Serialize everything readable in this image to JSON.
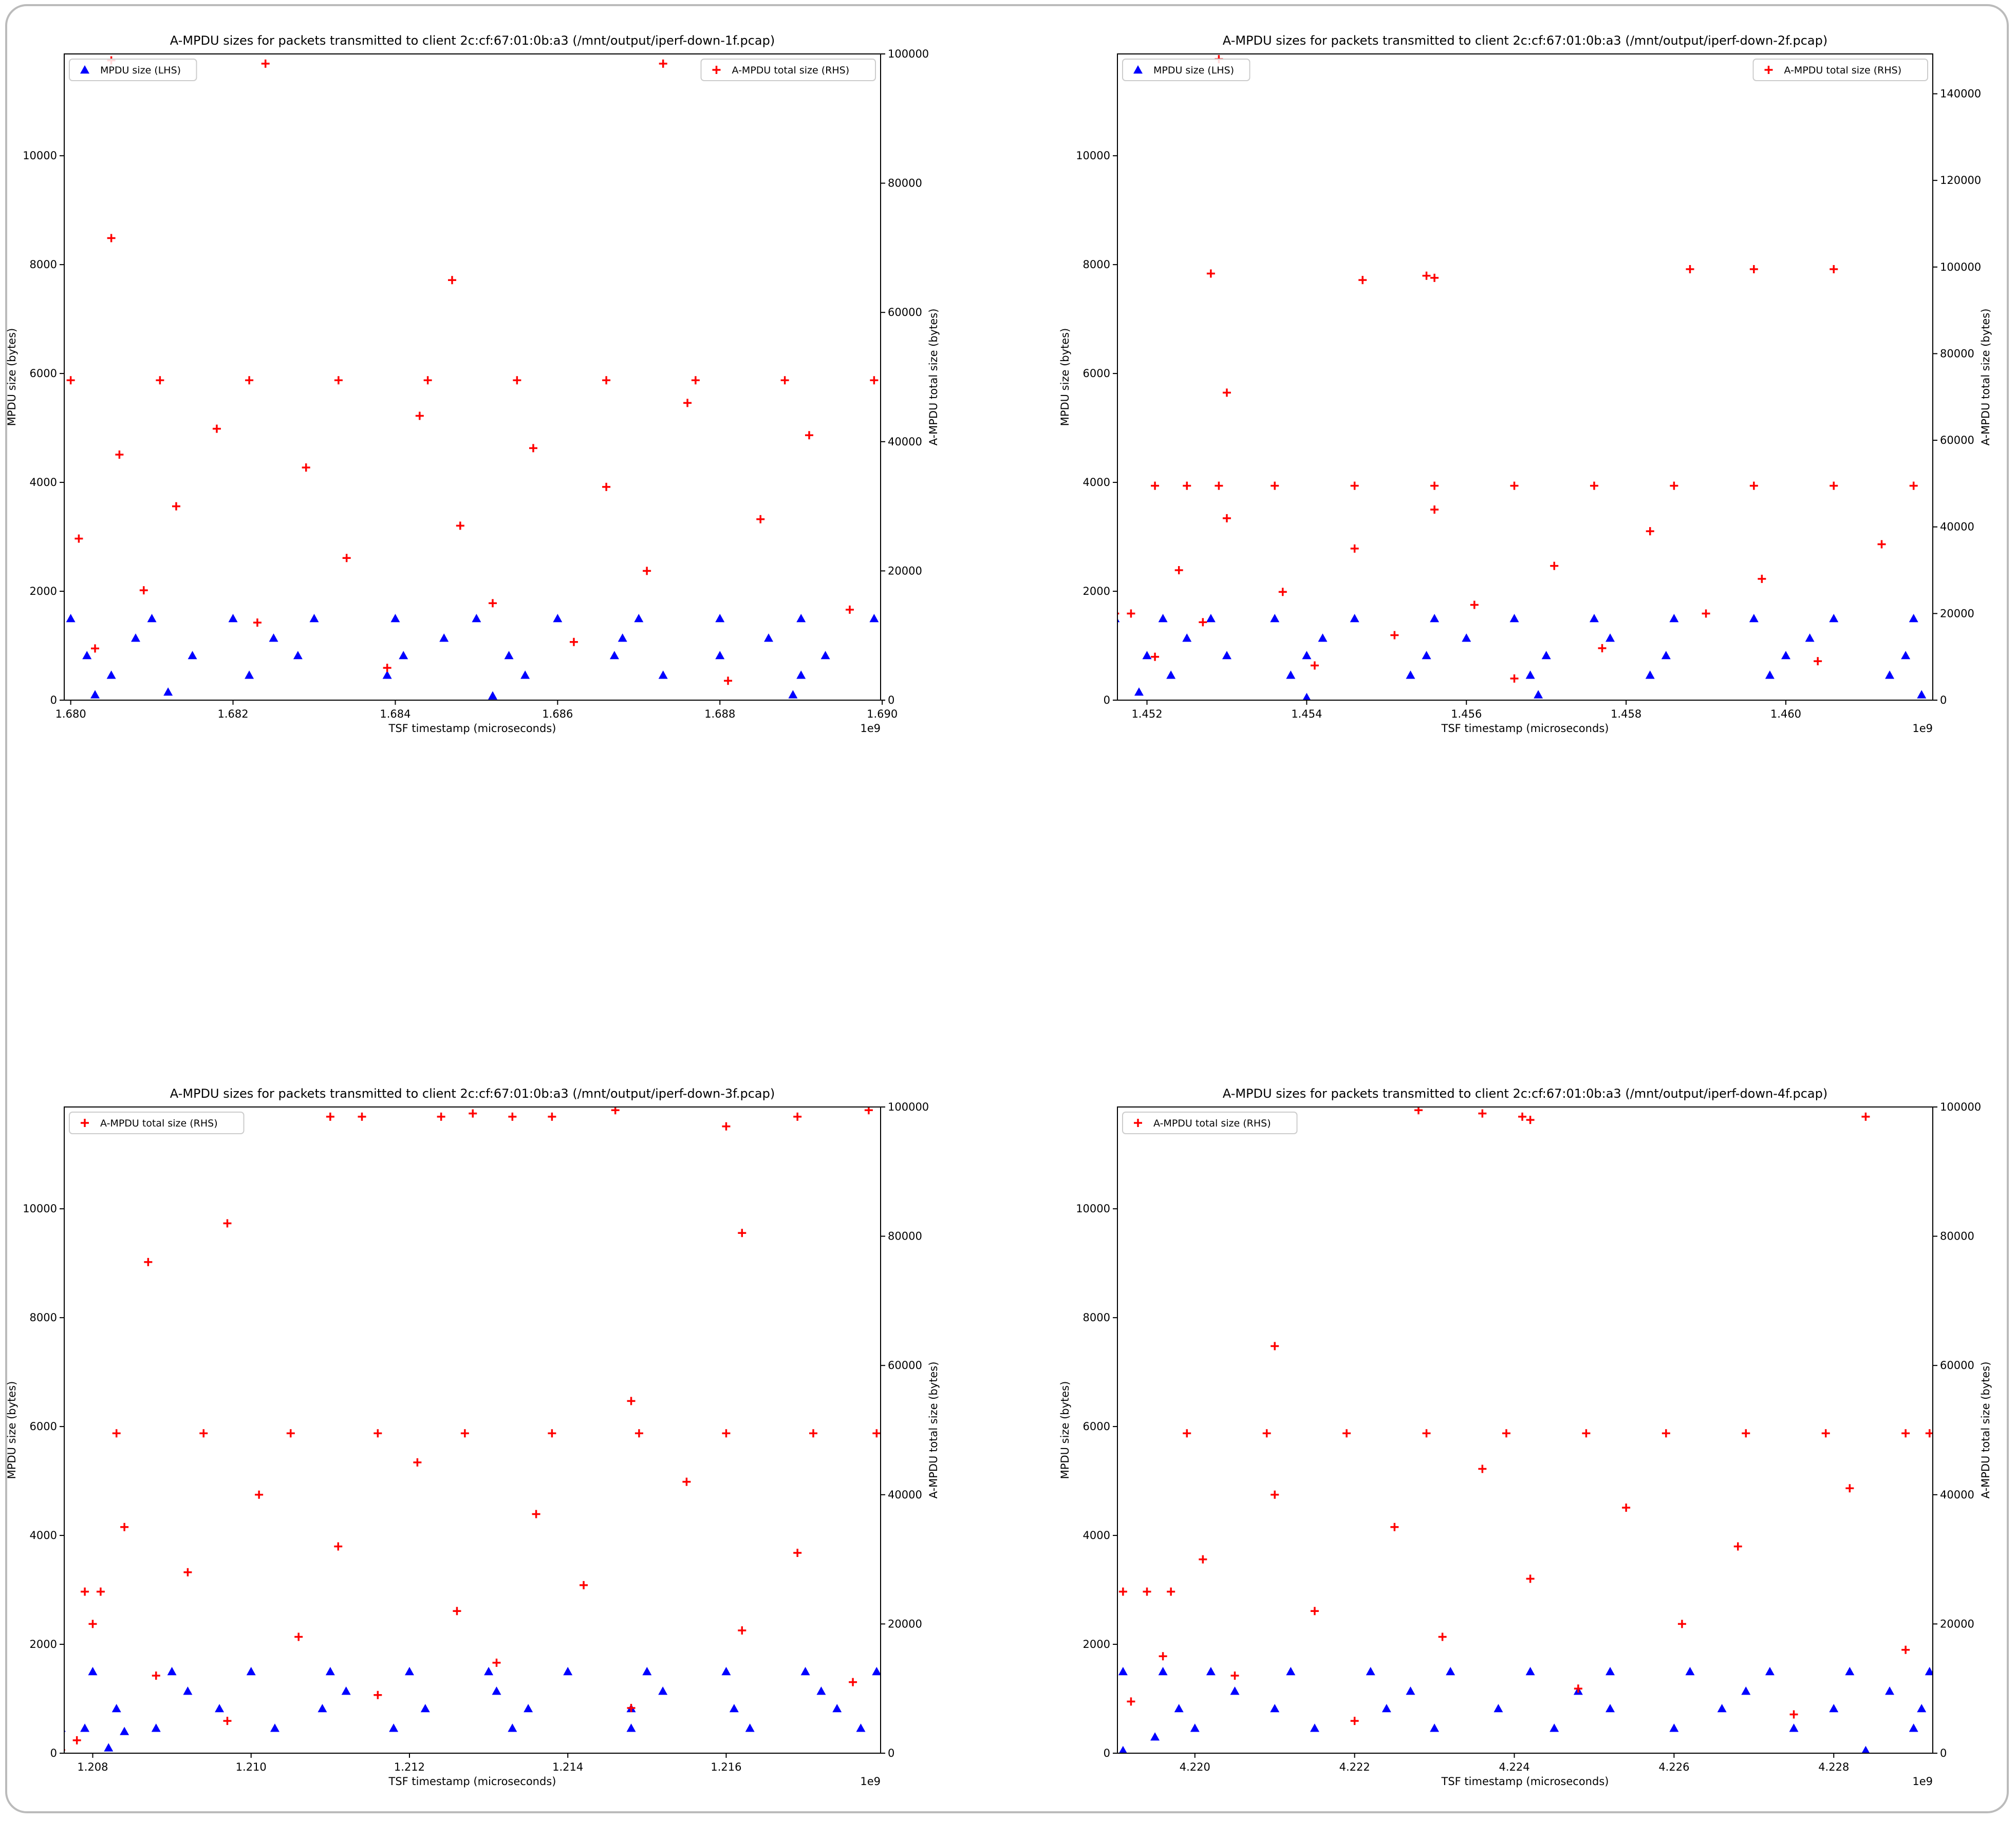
{
  "chart_data": [
    {
      "type": "scatter",
      "title": "A-MPDU sizes for packets transmitted to client 2c:cf:67:01:0b:a3 (/mnt/output/iperf-down-1f.pcap)",
      "xlabel": "TSF timestamp (microseconds)",
      "ylabel": "MPDU size (bytes)",
      "y2label": "A-MPDU total size (bytes)",
      "x_offset_label": "1e9",
      "xlim": [
        1.67992,
        1.68998
      ],
      "xticks": [
        {
          "value": 1.68,
          "label": "1.680"
        },
        {
          "value": 1.682,
          "label": "1.682"
        },
        {
          "value": 1.684,
          "label": "1.684"
        },
        {
          "value": 1.686,
          "label": "1.686"
        },
        {
          "value": 1.688,
          "label": "1.688"
        },
        {
          "value": 1.69,
          "label": "1.690"
        }
      ],
      "ylim": [
        0,
        11870
      ],
      "yticks": [
        0,
        2000,
        4000,
        6000,
        8000,
        10000
      ],
      "y2lim": [
        0,
        100000
      ],
      "y2ticks": [
        0,
        20000,
        40000,
        60000,
        80000,
        100000
      ],
      "series": [
        {
          "name": "MPDU size (LHS)",
          "color": "#0000ff",
          "marker": "triangle",
          "legend_loc": "upper left",
          "x": [
            1.68,
            1.681,
            1.682,
            1.683,
            1.684,
            1.685,
            1.686,
            1.687,
            1.688,
            1.689,
            1.6899,
            1.6802,
            1.6815,
            1.6828,
            1.6841,
            1.6854,
            1.6867,
            1.688,
            1.6893,
            1.6805,
            1.6822,
            1.6839,
            1.6856,
            1.6873,
            1.689,
            1.6808,
            1.6825,
            1.6846,
            1.6868,
            1.6886,
            1.6803,
            1.6812,
            1.6852,
            1.6889
          ],
          "values": [
            1500,
            1500,
            1500,
            1500,
            1500,
            1500,
            1500,
            1500,
            1500,
            1500,
            1500,
            820,
            820,
            820,
            820,
            820,
            820,
            820,
            820,
            460,
            460,
            460,
            460,
            460,
            460,
            1140,
            1140,
            1140,
            1140,
            1140,
            100,
            150,
            80,
            100
          ]
        },
        {
          "name": "A-MPDU total size (RHS)",
          "color": "#ff0000",
          "marker": "plus",
          "axis": "y2",
          "legend_loc": "upper right",
          "x": [
            1.68,
            1.6811,
            1.6822,
            1.6833,
            1.6844,
            1.6855,
            1.6866,
            1.6877,
            1.6888,
            1.6899,
            1.6801,
            1.6803,
            1.6806,
            1.6809,
            1.6813,
            1.6818,
            1.6823,
            1.6829,
            1.6834,
            1.6839,
            1.6843,
            1.6848,
            1.6852,
            1.6857,
            1.6862,
            1.6866,
            1.6871,
            1.6876,
            1.6881,
            1.6885,
            1.6891,
            1.6896,
            1.6805,
            1.6824,
            1.6873,
            1.6805,
            1.6847
          ],
          "values": [
            49500,
            49500,
            49500,
            49500,
            49500,
            49500,
            49500,
            49500,
            49500,
            49500,
            25000,
            8000,
            38000,
            17000,
            30000,
            42000,
            12000,
            36000,
            22000,
            5000,
            44000,
            27000,
            15000,
            39000,
            9000,
            33000,
            20000,
            46000,
            3000,
            28000,
            41000,
            14000,
            99000,
            98500,
            98500,
            71500,
            65000
          ]
        }
      ]
    },
    {
      "type": "scatter",
      "title": "A-MPDU sizes for packets transmitted to client 2c:cf:67:01:0b:a3 (/mnt/output/iperf-down-2f.pcap)",
      "xlabel": "TSF timestamp (microseconds)",
      "ylabel": "MPDU size (bytes)",
      "y2label": "A-MPDU total size (bytes)",
      "x_offset_label": "1e9",
      "xlim": [
        1.45163,
        1.46184
      ],
      "xticks": [
        {
          "value": 1.452,
          "label": "1.452"
        },
        {
          "value": 1.454,
          "label": "1.454"
        },
        {
          "value": 1.456,
          "label": "1.456"
        },
        {
          "value": 1.458,
          "label": "1.458"
        },
        {
          "value": 1.46,
          "label": "1.460"
        }
      ],
      "ylim": [
        0,
        11870
      ],
      "yticks": [
        0,
        2000,
        4000,
        6000,
        8000,
        10000
      ],
      "y2lim": [
        0,
        149200
      ],
      "y2ticks": [
        0,
        20000,
        40000,
        60000,
        80000,
        100000,
        120000,
        140000
      ],
      "series": [
        {
          "name": "MPDU size (LHS)",
          "color": "#0000ff",
          "marker": "triangle",
          "legend_loc": "upper left",
          "x": [
            1.4516,
            1.4522,
            1.4528,
            1.4536,
            1.4546,
            1.4556,
            1.4566,
            1.4576,
            1.4586,
            1.4596,
            1.4606,
            1.4616,
            1.452,
            1.453,
            1.454,
            1.4555,
            1.457,
            1.4585,
            1.46,
            1.4615,
            1.4523,
            1.4538,
            1.4553,
            1.4568,
            1.4583,
            1.4598,
            1.4613,
            1.4525,
            1.4542,
            1.456,
            1.4578,
            1.4603,
            1.4519,
            1.454,
            1.4569,
            1.4617
          ],
          "values": [
            1500,
            1500,
            1500,
            1500,
            1500,
            1500,
            1500,
            1500,
            1500,
            1500,
            1500,
            1500,
            820,
            820,
            820,
            820,
            820,
            820,
            820,
            820,
            460,
            460,
            460,
            460,
            460,
            460,
            460,
            1140,
            1140,
            1140,
            1140,
            1140,
            150,
            50,
            100,
            100
          ]
        },
        {
          "name": "A-MPDU total size (RHS)",
          "color": "#ff0000",
          "marker": "plus",
          "axis": "y2",
          "legend_loc": "upper right",
          "x": [
            1.4514,
            1.4516,
            1.4518,
            1.4521,
            1.4525,
            1.4529,
            1.4536,
            1.4546,
            1.4556,
            1.4566,
            1.4576,
            1.4586,
            1.4596,
            1.4606,
            1.4616,
            1.4521,
            1.4524,
            1.4527,
            1.453,
            1.4537,
            1.4541,
            1.4546,
            1.4551,
            1.4556,
            1.4561,
            1.4566,
            1.4571,
            1.4577,
            1.4583,
            1.459,
            1.4597,
            1.4604,
            1.4612,
            1.4528,
            1.4547,
            1.4555,
            1.4556,
            1.4588,
            1.4596,
            1.4606,
            1.4529,
            1.453
          ],
          "values": [
            20000,
            20000,
            20000,
            49500,
            49500,
            49500,
            49500,
            49500,
            49500,
            49500,
            49500,
            49500,
            49500,
            49500,
            49500,
            10000,
            30000,
            18000,
            42000,
            25000,
            8000,
            35000,
            15000,
            44000,
            22000,
            5000,
            31000,
            12000,
            39000,
            20000,
            28000,
            9000,
            36000,
            98500,
            97000,
            98000,
            97500,
            99500,
            99500,
            99500,
            148000,
            71000
          ]
        }
      ]
    },
    {
      "type": "scatter",
      "title": "A-MPDU sizes for packets transmitted to client 2c:cf:67:01:0b:a3 (/mnt/output/iperf-down-3f.pcap)",
      "xlabel": "TSF timestamp (microseconds)",
      "ylabel": "MPDU size (bytes)",
      "y2label": "A-MPDU total size (bytes)",
      "x_offset_label": "1e9",
      "xlim": [
        1.20764,
        1.21795
      ],
      "xticks": [
        {
          "value": 1.208,
          "label": "1.208"
        },
        {
          "value": 1.21,
          "label": "1.210"
        },
        {
          "value": 1.212,
          "label": "1.212"
        },
        {
          "value": 1.214,
          "label": "1.214"
        },
        {
          "value": 1.216,
          "label": "1.216"
        }
      ],
      "ylim": [
        0,
        11870
      ],
      "yticks": [
        0,
        2000,
        4000,
        6000,
        8000,
        10000
      ],
      "y2lim": [
        0,
        100000
      ],
      "y2ticks": [
        0,
        20000,
        40000,
        60000,
        80000,
        100000
      ],
      "series": [
        {
          "color": "#0000ff",
          "marker": "triangle",
          "x": [
            1.208,
            1.209,
            1.21,
            1.211,
            1.212,
            1.213,
            1.214,
            1.215,
            1.216,
            1.217,
            1.2179,
            1.2083,
            1.2096,
            1.2109,
            1.2122,
            1.2135,
            1.2148,
            1.2161,
            1.2174,
            1.2076,
            1.2079,
            1.2088,
            1.2103,
            1.2118,
            1.2133,
            1.2148,
            1.2163,
            1.2177,
            1.2092,
            1.2112,
            1.2131,
            1.2152,
            1.2172,
            1.2082,
            1.2084
          ],
          "values": [
            1500,
            1500,
            1500,
            1500,
            1500,
            1500,
            1500,
            1500,
            1500,
            1500,
            1500,
            820,
            820,
            820,
            820,
            820,
            820,
            820,
            820,
            460,
            460,
            460,
            460,
            460,
            460,
            460,
            460,
            460,
            1140,
            1140,
            1140,
            1140,
            1140,
            100,
            400
          ]
        },
        {
          "name": "A-MPDU total size (RHS)",
          "color": "#ff0000",
          "marker": "plus",
          "axis": "y2",
          "legend_loc": "upper left",
          "x": [
            1.2076,
            1.2078,
            1.2079,
            1.2081,
            1.208,
            1.2083,
            1.2094,
            1.2105,
            1.2116,
            1.2127,
            1.2138,
            1.2149,
            1.216,
            1.2171,
            1.2179,
            1.2084,
            1.2088,
            1.2092,
            1.2097,
            1.2101,
            1.2106,
            1.2111,
            1.2116,
            1.2121,
            1.2126,
            1.2131,
            1.2136,
            1.2142,
            1.2148,
            1.2155,
            1.2162,
            1.2169,
            1.2176,
            1.2087,
            1.2097,
            1.211,
            1.2114,
            1.2124,
            1.2128,
            1.2133,
            1.2138,
            1.2146,
            1.216,
            1.2169,
            1.2178,
            1.2148,
            1.2162
          ],
          "values": [
            500,
            2000,
            25000,
            25000,
            20000,
            49500,
            49500,
            49500,
            49500,
            49500,
            49500,
            49500,
            49500,
            49500,
            49500,
            35000,
            12000,
            28000,
            5000,
            40000,
            18000,
            32000,
            9000,
            45000,
            22000,
            14000,
            37000,
            26000,
            7000,
            42000,
            19000,
            31000,
            11000,
            76000,
            82000,
            98500,
            98500,
            98500,
            99000,
            98500,
            98500,
            99500,
            97000,
            98500,
            99500,
            54500,
            80500
          ]
        }
      ]
    },
    {
      "type": "scatter",
      "title": "A-MPDU sizes for packets transmitted to client 2c:cf:67:01:0b:a3 (/mnt/output/iperf-down-4f.pcap)",
      "xlabel": "TSF timestamp (microseconds)",
      "ylabel": "MPDU size (bytes)",
      "y2label": "A-MPDU total size (bytes)",
      "x_offset_label": "1e9",
      "xlim": [
        4.21903,
        4.22924
      ],
      "xticks": [
        {
          "value": 4.22,
          "label": "4.220"
        },
        {
          "value": 4.222,
          "label": "4.222"
        },
        {
          "value": 4.224,
          "label": "4.224"
        },
        {
          "value": 4.226,
          "label": "4.226"
        },
        {
          "value": 4.228,
          "label": "4.228"
        }
      ],
      "ylim": [
        0,
        11870
      ],
      "yticks": [
        0,
        2000,
        4000,
        6000,
        8000,
        10000
      ],
      "y2lim": [
        0,
        100000
      ],
      "y2ticks": [
        0,
        20000,
        40000,
        60000,
        80000,
        100000
      ],
      "series": [
        {
          "color": "#0000ff",
          "marker": "triangle",
          "x": [
            4.2191,
            4.2196,
            4.2202,
            4.2212,
            4.2222,
            4.2232,
            4.2242,
            4.2252,
            4.2262,
            4.2272,
            4.2282,
            4.2292,
            4.2198,
            4.221,
            4.2224,
            4.2238,
            4.2252,
            4.2266,
            4.228,
            4.2291,
            4.22,
            4.2215,
            4.223,
            4.2245,
            4.226,
            4.2275,
            4.229,
            4.2205,
            4.2227,
            4.2248,
            4.2269,
            4.2287,
            4.2191,
            4.2195,
            4.2284
          ],
          "values": [
            1500,
            1500,
            1500,
            1500,
            1500,
            1500,
            1500,
            1500,
            1500,
            1500,
            1500,
            1500,
            820,
            820,
            820,
            820,
            820,
            820,
            820,
            820,
            460,
            460,
            460,
            460,
            460,
            460,
            460,
            1140,
            1140,
            1140,
            1140,
            1140,
            50,
            300,
            50
          ]
        },
        {
          "name": "A-MPDU total size (RHS)",
          "color": "#ff0000",
          "marker": "plus",
          "axis": "y2",
          "legend_loc": "upper left",
          "x": [
            4.2191,
            4.2194,
            4.2197,
            4.2199,
            4.2209,
            4.2219,
            4.2229,
            4.2239,
            4.2249,
            4.2259,
            4.2269,
            4.2279,
            4.2289,
            4.2292,
            4.2192,
            4.2196,
            4.2201,
            4.2205,
            4.221,
            4.2215,
            4.222,
            4.2225,
            4.2231,
            4.2236,
            4.2242,
            4.2248,
            4.2254,
            4.2261,
            4.2268,
            4.2275,
            4.2282,
            4.2289,
            4.2228,
            4.2236,
            4.2241,
            4.2242,
            4.2284,
            4.221
          ],
          "values": [
            25000,
            25000,
            25000,
            49500,
            49500,
            49500,
            49500,
            49500,
            49500,
            49500,
            49500,
            49500,
            49500,
            49500,
            8000,
            15000,
            30000,
            12000,
            40000,
            22000,
            5000,
            35000,
            18000,
            44000,
            27000,
            10000,
            38000,
            20000,
            32000,
            6000,
            41000,
            16000,
            99500,
            99000,
            98500,
            98000,
            98500,
            63000
          ]
        }
      ]
    }
  ]
}
